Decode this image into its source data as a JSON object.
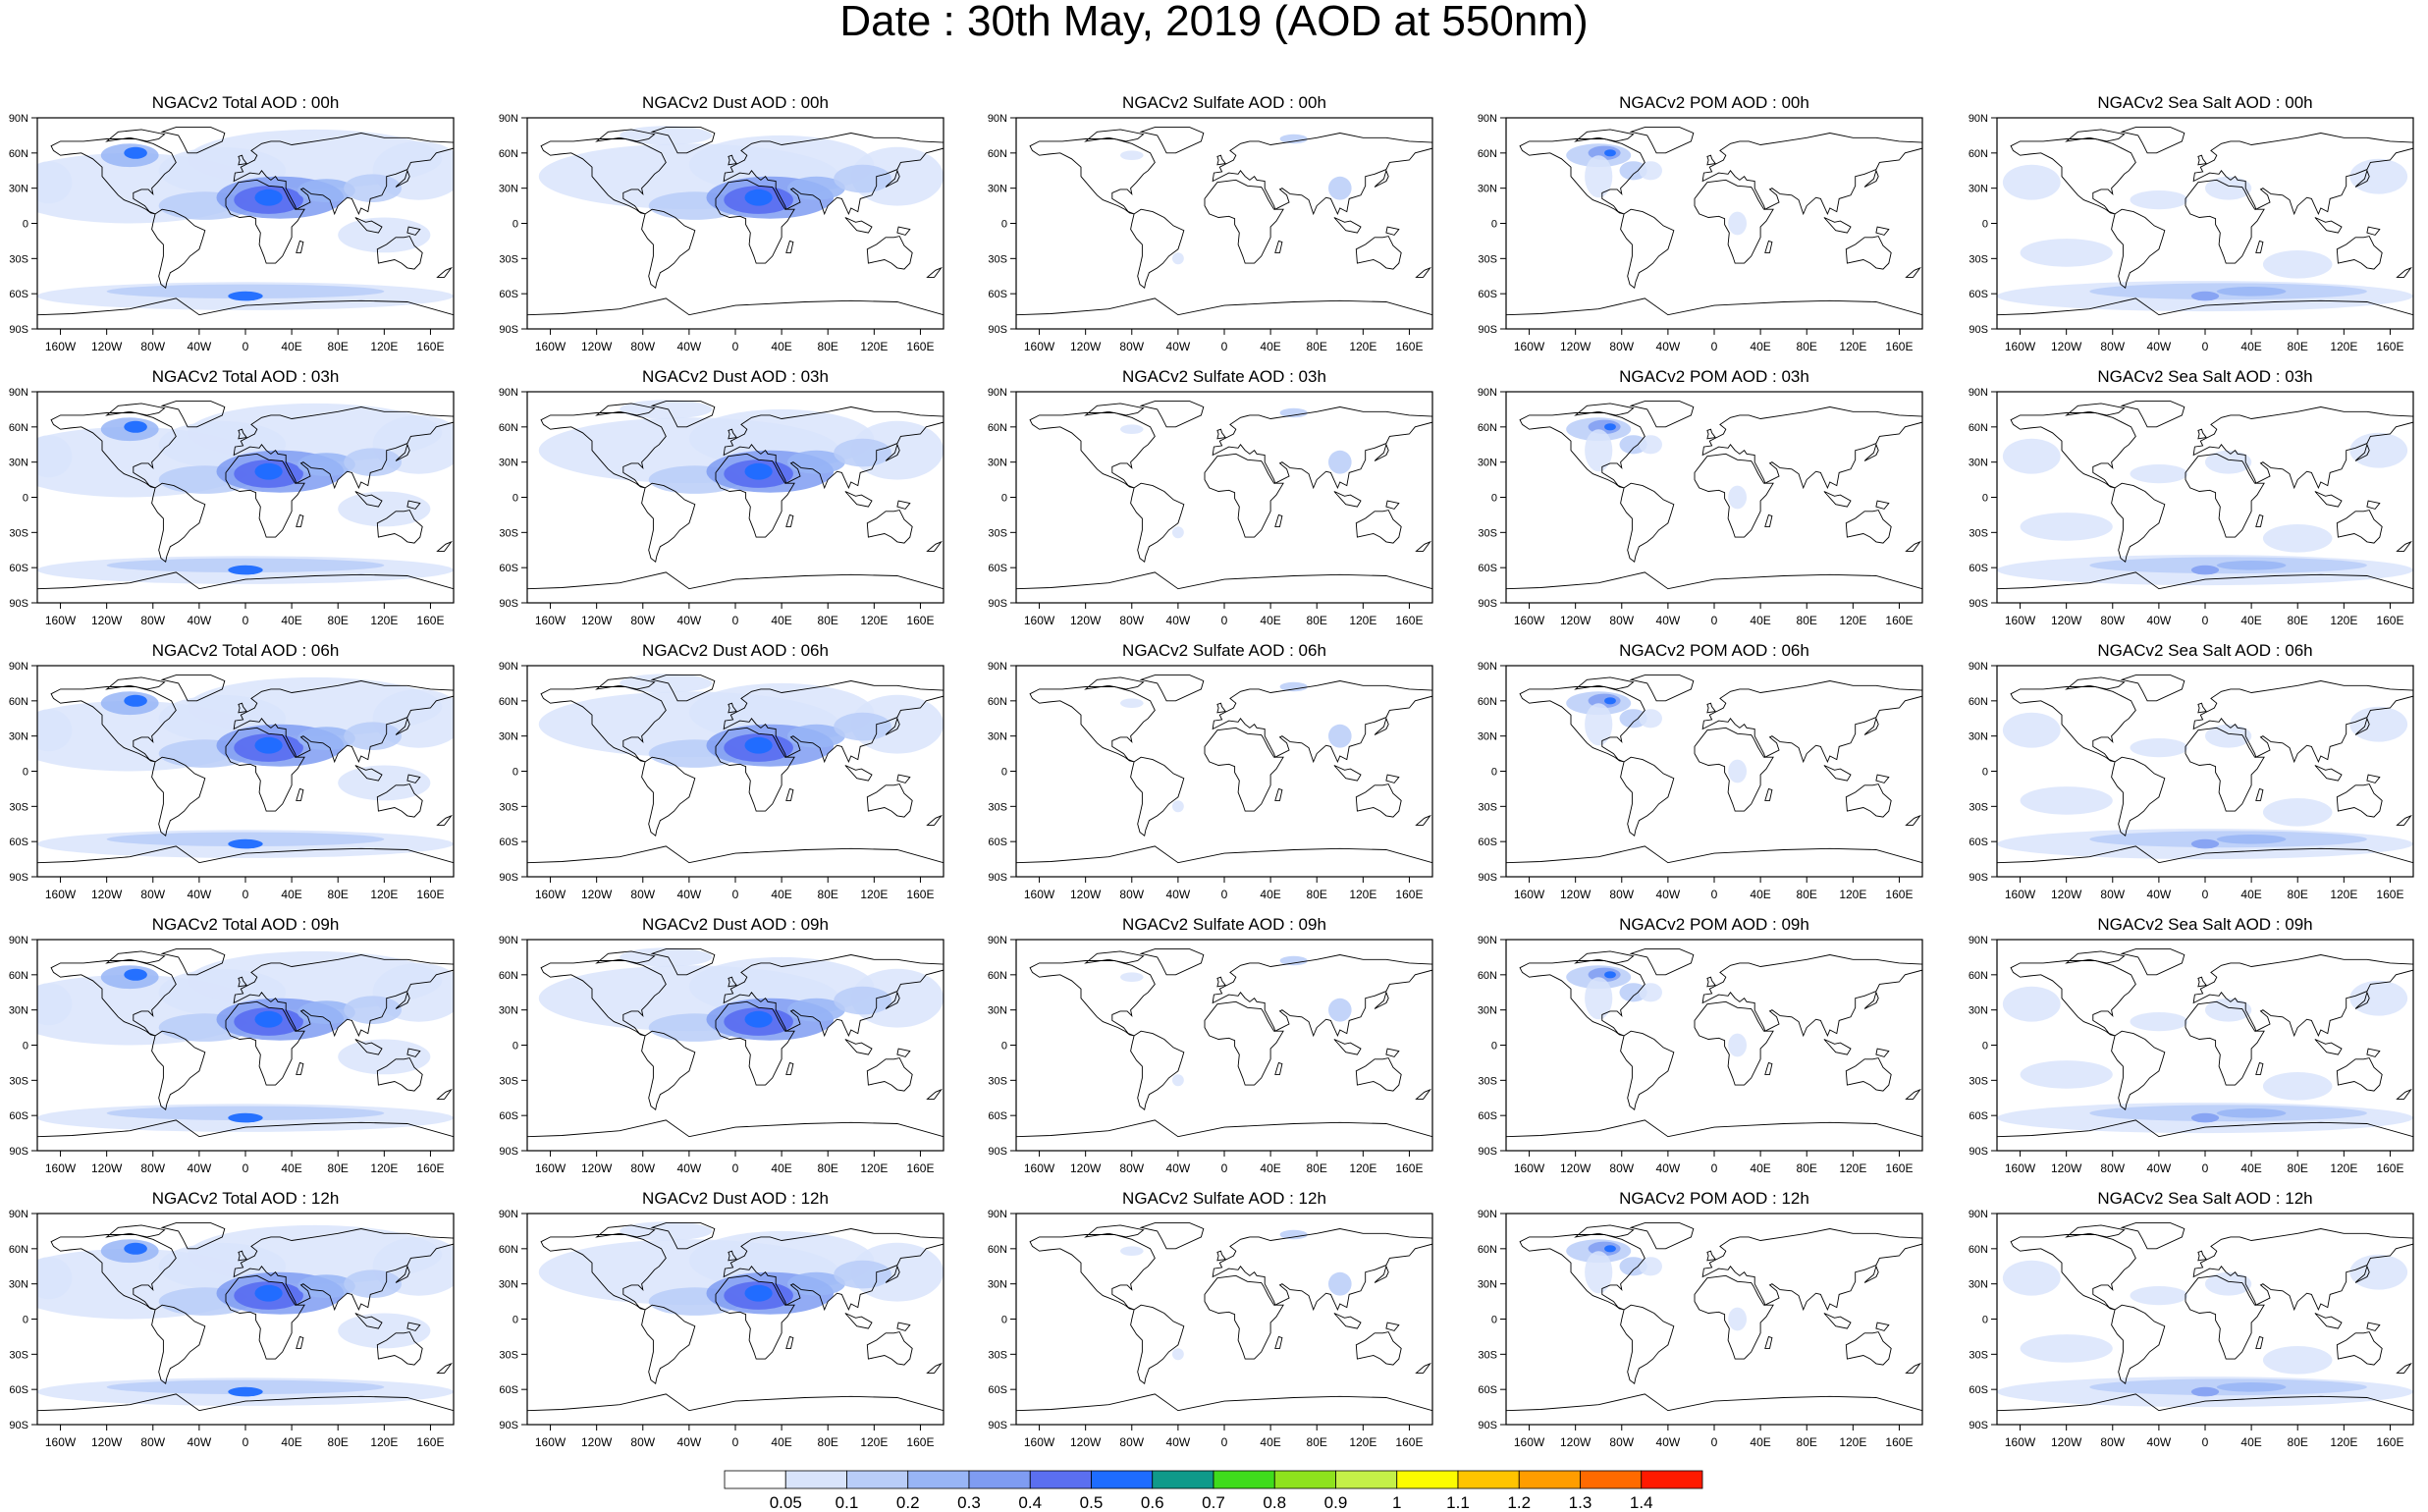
{
  "title": "Date : 30th May, 2019 (AOD at 550nm)",
  "column_species": [
    "Total",
    "Dust",
    "Sulfate",
    "POM",
    "Sea Salt"
  ],
  "row_hours": [
    "00h",
    "03h",
    "06h",
    "09h",
    "12h"
  ],
  "panels": [
    [
      "NGACv2 Total AOD : 00h",
      "NGACv2 Dust AOD : 00h",
      "NGACv2 Sulfate AOD : 00h",
      "NGACv2 POM AOD : 00h",
      "NGACv2 Sea Salt AOD : 00h"
    ],
    [
      "NGACv2 Total AOD : 03h",
      "NGACv2 Dust AOD : 03h",
      "NGACv2 Sulfate AOD : 03h",
      "NGACv2 POM AOD : 03h",
      "NGACv2 Sea Salt AOD : 03h"
    ],
    [
      "NGACv2 Total AOD : 06h",
      "NGACv2 Dust AOD : 06h",
      "NGACv2 Sulfate AOD : 06h",
      "NGACv2 POM AOD : 06h",
      "NGACv2 Sea Salt AOD : 06h"
    ],
    [
      "NGACv2 Total AOD : 09h",
      "NGACv2 Dust AOD : 09h",
      "NGACv2 Sulfate AOD : 09h",
      "NGACv2 POM AOD : 09h",
      "NGACv2 Sea Salt  AOD : 09h"
    ],
    [
      "NGACv2 Total AOD  : 12h",
      "NGACv2 Dust AOD : 12h",
      "NGACv2 Sulfate AOD : 12h",
      "NGACv2 POM  AOD : 12h",
      "NGACv2 Sea Salt AOD : 12h"
    ]
  ],
  "lat_ticks": [
    "90N",
    "60N",
    "30N",
    "0",
    "30S",
    "60S",
    "90S"
  ],
  "lon_ticks": [
    "160W",
    "120W",
    "80W",
    "40W",
    "0",
    "40E",
    "80E",
    "120E",
    "160E"
  ],
  "map_extent": {
    "lon_min": -180,
    "lon_max": 180,
    "lat_min": -90,
    "lat_max": 90
  },
  "colorbar": {
    "labels": [
      "0.05",
      "0.1",
      "0.2",
      "0.3",
      "0.4",
      "0.5",
      "0.6",
      "0.7",
      "0.8",
      "0.9",
      "1",
      "1.1",
      "1.2",
      "1.3",
      "1.4"
    ],
    "colors": [
      "#ffffff",
      "#d9e4fb",
      "#b9cdf8",
      "#98b5f6",
      "#7f9cf2",
      "#5b6ff0",
      "#1e6cff",
      "#109a8a",
      "#3fdc1c",
      "#8ee21d",
      "#c4f048",
      "#fcfc00",
      "#ffc400",
      "#ff9d00",
      "#ff6a00",
      "#ff1a00"
    ]
  },
  "aod_regions": {
    "dust_belt": {
      "lon": [
        -20,
        60
      ],
      "lat": [
        5,
        35
      ],
      "level": 5
    },
    "sahara_core": {
      "lon": [
        0,
        35
      ],
      "lat": [
        15,
        30
      ],
      "level": 6
    },
    "canada_smoke": {
      "lon": [
        -120,
        -80
      ],
      "lat": [
        50,
        65
      ],
      "level": 6
    },
    "southern_ocean": {
      "lon": [
        -180,
        180
      ],
      "lat": [
        -70,
        -45
      ],
      "level": 2
    }
  }
}
